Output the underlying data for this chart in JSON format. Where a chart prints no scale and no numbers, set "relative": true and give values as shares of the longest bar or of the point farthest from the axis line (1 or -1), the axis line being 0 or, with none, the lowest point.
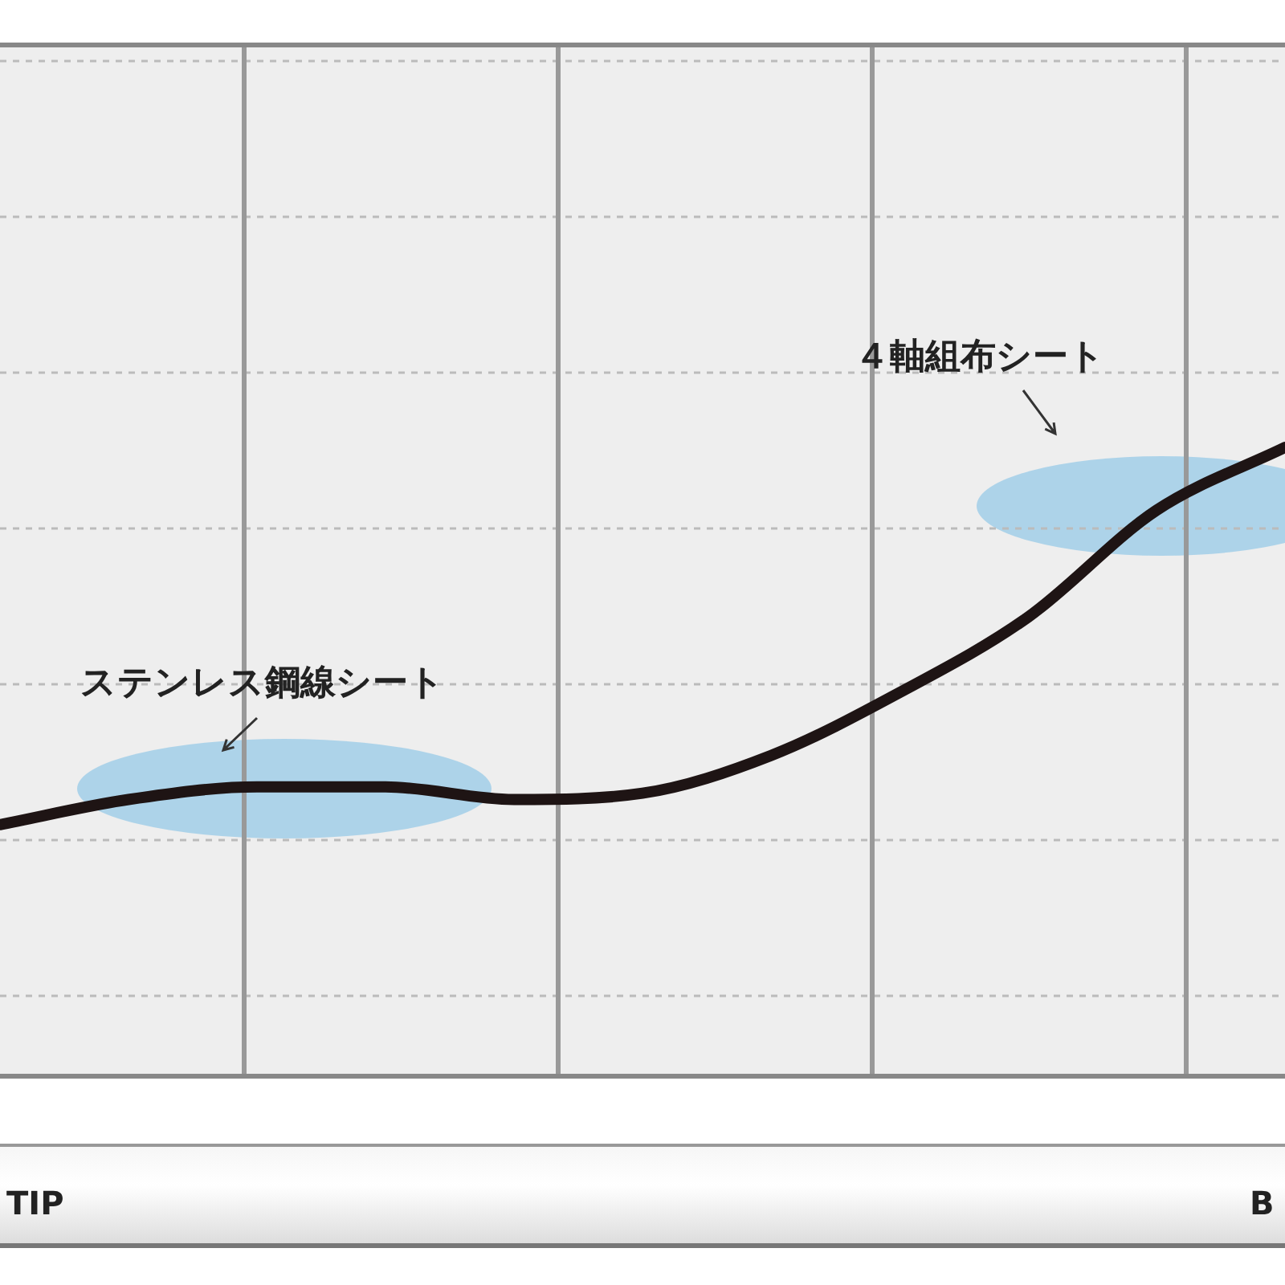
{
  "chart_data": {
    "type": "line",
    "relative": true,
    "grid": true,
    "legend": false,
    "categories": [
      null,
      null,
      null,
      null,
      null,
      null,
      null,
      null,
      null,
      null,
      null
    ],
    "series": [
      {
        "color": "#1e1414",
        "values": [
          0.4,
          0.44,
          0.46,
          0.46,
          0.44,
          0.45,
          0.51,
          0.61,
          0.73,
          0.9,
          1.0
        ]
      }
    ],
    "annotations": [
      "ステンレス鋼線シート",
      "４軸組布シート",
      "TIP",
      "B"
    ]
  }
}
